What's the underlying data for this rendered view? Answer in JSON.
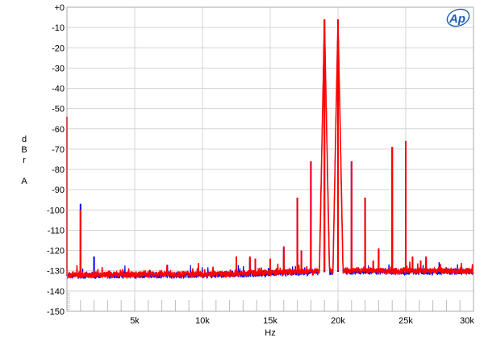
{
  "chart_data": {
    "type": "line",
    "xlabel": "Hz",
    "ylabel": [
      "d",
      "B",
      "r",
      "",
      "A"
    ],
    "xlim": [
      0,
      30000
    ],
    "ylim": [
      -150,
      0
    ],
    "xticks": [
      {
        "v": 5000,
        "label": "5k"
      },
      {
        "v": 10000,
        "label": "10k"
      },
      {
        "v": 15000,
        "label": "15k"
      },
      {
        "v": 20000,
        "label": "20k"
      },
      {
        "v": 25000,
        "label": "25k"
      },
      {
        "v": 30000,
        "label": "30k"
      }
    ],
    "yticks": [
      {
        "v": 0,
        "label": "+0"
      },
      {
        "v": -10,
        "label": "-10"
      },
      {
        "v": -20,
        "label": "-20"
      },
      {
        "v": -30,
        "label": "-30"
      },
      {
        "v": -40,
        "label": "-40"
      },
      {
        "v": -50,
        "label": "-50"
      },
      {
        "v": -60,
        "label": "-60"
      },
      {
        "v": -70,
        "label": "-70"
      },
      {
        "v": -80,
        "label": "-80"
      },
      {
        "v": -90,
        "label": "-90"
      },
      {
        "v": -100,
        "label": "-100"
      },
      {
        "v": -110,
        "label": "-110"
      },
      {
        "v": -120,
        "label": "-120"
      },
      {
        "v": -130,
        "label": "-130"
      },
      {
        "v": -140,
        "label": "-140"
      },
      {
        "v": -150,
        "label": "-150"
      }
    ],
    "grid": true,
    "logo": "AP",
    "series": [
      {
        "color": "#0000ff",
        "noise_floor": [
          [
            0,
            -132.5
          ],
          [
            12000,
            -132
          ],
          [
            20000,
            -130.5
          ],
          [
            30000,
            -130.5
          ]
        ],
        "peaks": [
          [
            0,
            -56
          ],
          [
            1000,
            -97
          ],
          [
            2000,
            -123
          ],
          [
            12500,
            -124
          ],
          [
            13500,
            -124
          ],
          [
            16000,
            -119
          ],
          [
            17000,
            -94
          ],
          [
            18000,
            -76
          ],
          [
            19000,
            -6
          ],
          [
            20000,
            -6
          ],
          [
            21000,
            -76
          ],
          [
            22000,
            -94
          ],
          [
            23000,
            -120
          ],
          [
            24000,
            -69
          ],
          [
            25000,
            -66
          ],
          [
            25500,
            -124
          ],
          [
            26500,
            -124
          ]
        ]
      },
      {
        "color": "#ff0000",
        "noise_floor": [
          [
            0,
            -132
          ],
          [
            12000,
            -131.5
          ],
          [
            20000,
            -130
          ],
          [
            30000,
            -130
          ]
        ],
        "peaks": [
          [
            0,
            -54
          ],
          [
            1000,
            -100
          ],
          [
            12500,
            -123
          ],
          [
            13500,
            -123
          ],
          [
            13900,
            -124
          ],
          [
            15000,
            -124
          ],
          [
            16000,
            -118
          ],
          [
            17000,
            -94
          ],
          [
            17300,
            -120
          ],
          [
            18000,
            -76
          ],
          [
            19000,
            -6
          ],
          [
            20000,
            -6
          ],
          [
            21000,
            -76
          ],
          [
            22000,
            -94
          ],
          [
            22600,
            -125
          ],
          [
            23000,
            -119
          ],
          [
            24000,
            -69
          ],
          [
            25000,
            -66
          ],
          [
            25500,
            -123
          ],
          [
            26100,
            -125
          ],
          [
            26500,
            -123
          ]
        ]
      }
    ]
  }
}
